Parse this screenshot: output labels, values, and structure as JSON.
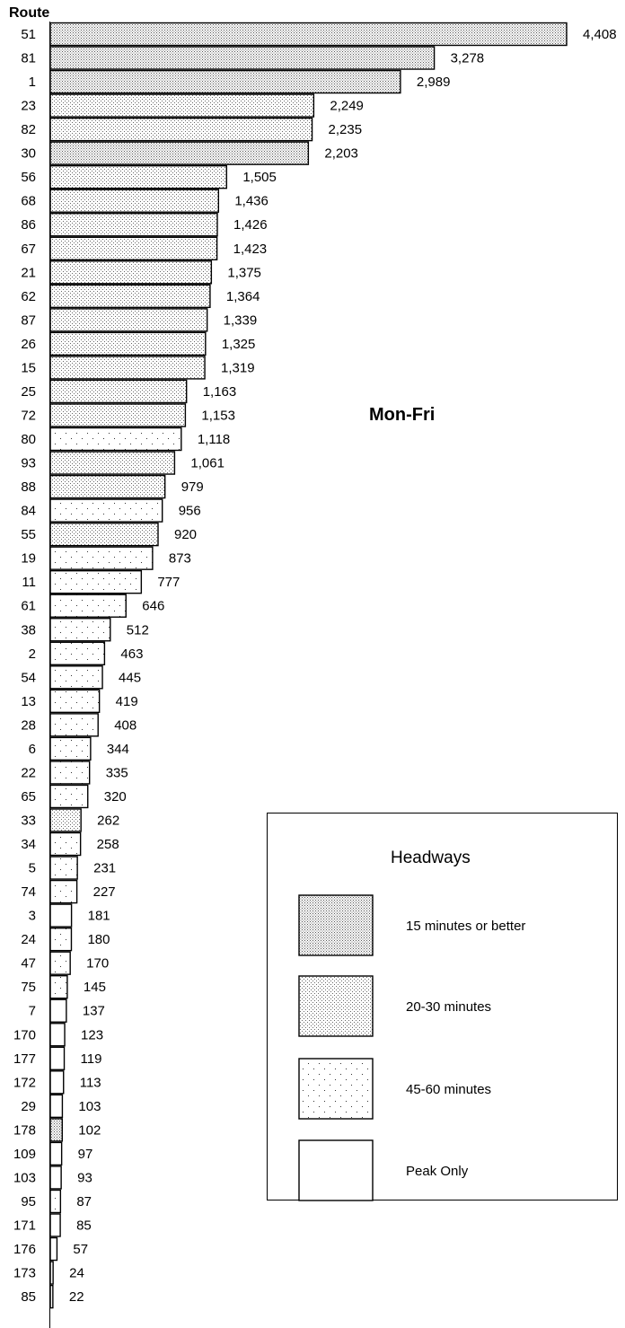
{
  "chart_data": {
    "type": "bar",
    "orientation": "horizontal",
    "title": "Route",
    "panel_label": "Mon-Fri",
    "legend": {
      "title": "Headways",
      "placement": "bottom-right",
      "entries": [
        {
          "key": "15min",
          "label": "15 minutes or better"
        },
        {
          "key": "20_30",
          "label": "20-30 minutes"
        },
        {
          "key": "45_60",
          "label": "45-60 minutes"
        },
        {
          "key": "peak",
          "label": "Peak Only"
        }
      ]
    },
    "categories": [
      "51",
      "81",
      "1",
      "23",
      "82",
      "30",
      "56",
      "68",
      "86",
      "67",
      "21",
      "62",
      "87",
      "26",
      "15",
      "25",
      "72",
      "80",
      "93",
      "88",
      "84",
      "55",
      "19",
      "11",
      "61",
      "38",
      "2",
      "54",
      "13",
      "28",
      "6",
      "22",
      "65",
      "33",
      "34",
      "5",
      "74",
      "3",
      "24",
      "47",
      "75",
      "7",
      "170",
      "177",
      "172",
      "29",
      "178",
      "109",
      "103",
      "95",
      "171",
      "176",
      "173",
      "85"
    ],
    "values": [
      4408,
      3278,
      2989,
      2249,
      2235,
      2203,
      1505,
      1436,
      1426,
      1423,
      1375,
      1364,
      1339,
      1325,
      1319,
      1163,
      1153,
      1118,
      1061,
      979,
      956,
      920,
      873,
      777,
      646,
      512,
      463,
      445,
      419,
      408,
      344,
      335,
      320,
      262,
      258,
      231,
      227,
      181,
      180,
      170,
      145,
      137,
      123,
      119,
      113,
      103,
      102,
      97,
      93,
      87,
      85,
      57,
      24,
      22
    ],
    "value_labels": [
      "4,408",
      "3,278",
      "2,989",
      "2,249",
      "2,235",
      "2,203",
      "1,505",
      "1,436",
      "1,426",
      "1,423",
      "1,375",
      "1,364",
      "1,339",
      "1,325",
      "1,319",
      "1,163",
      "1,153",
      "1,118",
      "1,061",
      "979",
      "956",
      "920",
      "873",
      "777",
      "646",
      "512",
      "463",
      "445",
      "419",
      "408",
      "344",
      "335",
      "320",
      "262",
      "258",
      "231",
      "227",
      "181",
      "180",
      "170",
      "145",
      "137",
      "123",
      "119",
      "113",
      "103",
      "102",
      "97",
      "93",
      "87",
      "85",
      "57",
      "24",
      "22"
    ],
    "headway": [
      "15min",
      "15min",
      "15min",
      "20_30",
      "20_30",
      "15min",
      "20_30",
      "20_30",
      "20_30",
      "20_30",
      "20_30",
      "20_30",
      "20_30",
      "20_30",
      "20_30",
      "20_30",
      "20_30",
      "45_60",
      "20_30",
      "20_30",
      "45_60",
      "20_30",
      "45_60",
      "45_60",
      "45_60",
      "45_60",
      "45_60",
      "45_60",
      "45_60",
      "45_60",
      "45_60",
      "45_60",
      "45_60",
      "20_30",
      "45_60",
      "45_60",
      "45_60",
      "peak",
      "45_60",
      "45_60",
      "45_60",
      "peak",
      "peak",
      "peak",
      "peak",
      "peak",
      "15min",
      "peak",
      "peak",
      "45_60",
      "peak",
      "peak",
      "peak",
      "peak"
    ],
    "xlim": [
      0,
      4408
    ],
    "grid": false
  }
}
